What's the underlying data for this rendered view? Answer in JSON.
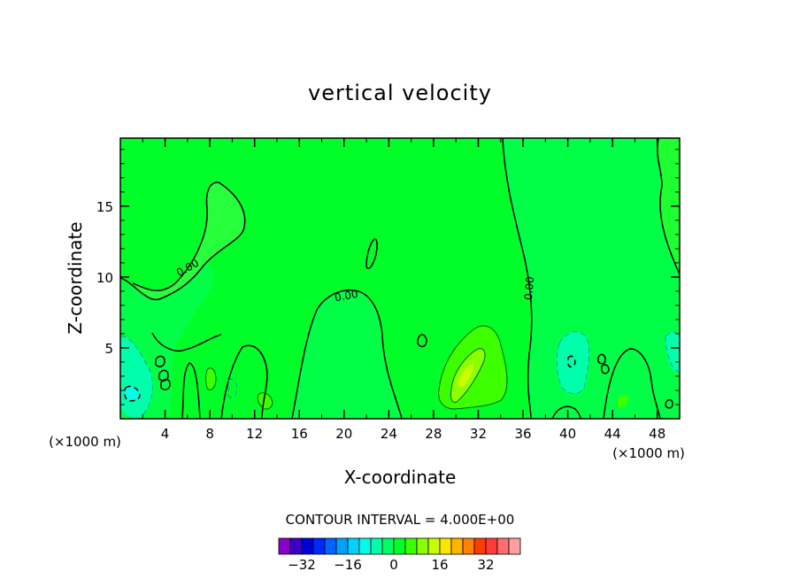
{
  "chart_data": {
    "type": "heatmap",
    "title": "vertical velocity",
    "xlabel": "X-coordinate",
    "ylabel": "Z-coordinate",
    "x_unit_left": "(×1000 m)",
    "x_unit_right": "(×1000 m)",
    "xlim": [
      0,
      50
    ],
    "ylim": [
      0,
      19.8
    ],
    "x_ticks": [
      4,
      8,
      12,
      16,
      20,
      24,
      28,
      32,
      36,
      40,
      44,
      48
    ],
    "y_ticks": [
      5,
      10,
      15
    ],
    "contour_interval_text": "CONTOUR INTERVAL = 4.000E+00",
    "contour_labels": [
      "0.00",
      "0.00",
      "0.00"
    ],
    "background_value_range": [
      0,
      4
    ],
    "colorbar": {
      "levels": [
        -36,
        -32,
        -28,
        -24,
        -20,
        -16,
        -12,
        -8,
        -4,
        0,
        4,
        8,
        12,
        16,
        20,
        24,
        28,
        32,
        36
      ],
      "tick_values": [
        -32,
        -16,
        0,
        16,
        32
      ],
      "tick_labels": [
        "−32",
        "−16",
        "0",
        "16",
        "32"
      ],
      "colors": [
        "#8a00c8",
        "#3c00c8",
        "#0000d8",
        "#0028ff",
        "#0064ff",
        "#00a0ff",
        "#00d2ff",
        "#00ffe6",
        "#00ffaa",
        "#00ff64",
        "#00ff28",
        "#3cff00",
        "#8cff00",
        "#c8ff00",
        "#ffe600",
        "#ffb400",
        "#ff8200",
        "#ff3c00",
        "#ff3c3c",
        "#ff6e6e",
        "#ffa0a0"
      ]
    },
    "features": [
      {
        "sign": "negative",
        "range": [
          -4,
          0
        ],
        "location": "x≈0–3, z≈0–6"
      },
      {
        "sign": "negative",
        "range": [
          -4,
          0
        ],
        "location": "x≈38–42, z≈2–6"
      },
      {
        "sign": "positive",
        "range": [
          4,
          8
        ],
        "location": "x≈28–34, z≈1–7"
      },
      {
        "sign": "positive",
        "range": [
          8,
          12
        ],
        "location": "x≈30–32, z≈2–5"
      }
    ]
  }
}
